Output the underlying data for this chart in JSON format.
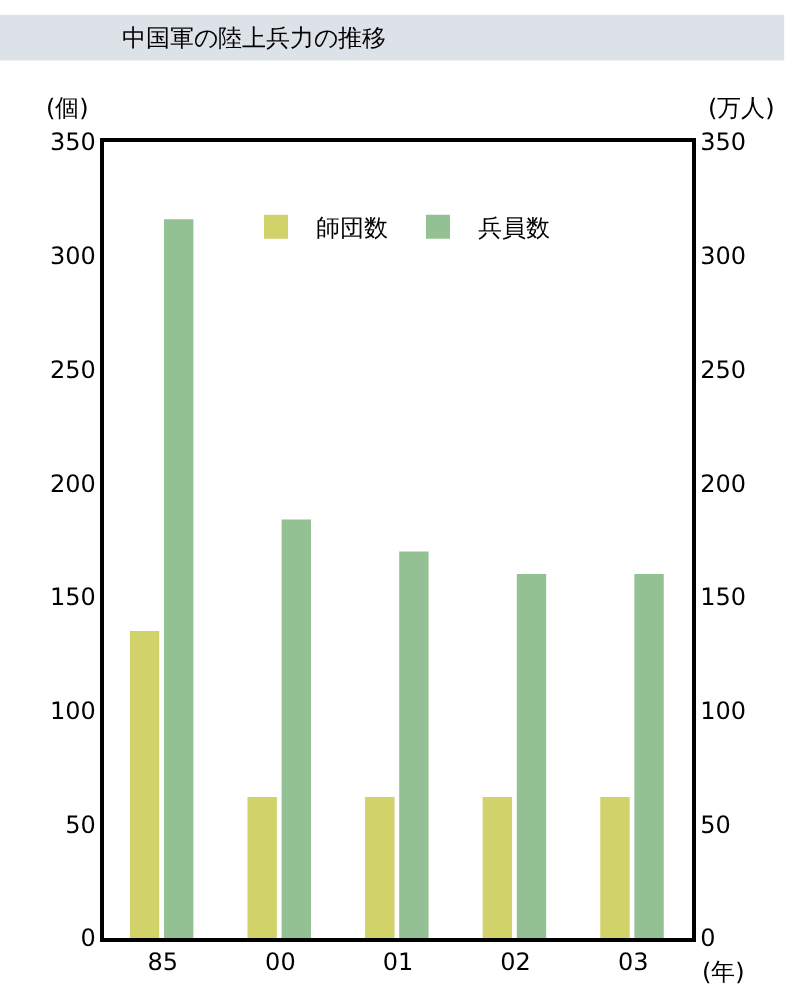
{
  "chart_data": {
    "type": "bar",
    "title": "中国軍の陸上兵力の推移",
    "xlabel": "(年)",
    "ylabel": "(個)",
    "y2label": "(万人)",
    "categories": [
      "85",
      "00",
      "01",
      "02",
      "03"
    ],
    "series": [
      {
        "name": "師団数",
        "color": "#d2d26a",
        "values": [
          135,
          62,
          62,
          62,
          62
        ]
      },
      {
        "name": "兵員数",
        "color": "#94c194",
        "values": [
          316,
          184,
          170,
          160,
          160
        ],
        "axis": "y2"
      }
    ],
    "ylim": [
      0,
      350
    ],
    "yticks": [
      0,
      50,
      100,
      150,
      200,
      250,
      300,
      350
    ],
    "y2lim": [
      0,
      350
    ],
    "y2ticks": [
      0,
      50,
      100,
      150,
      200,
      250,
      300,
      350
    ],
    "grid": false,
    "legend": "top"
  }
}
